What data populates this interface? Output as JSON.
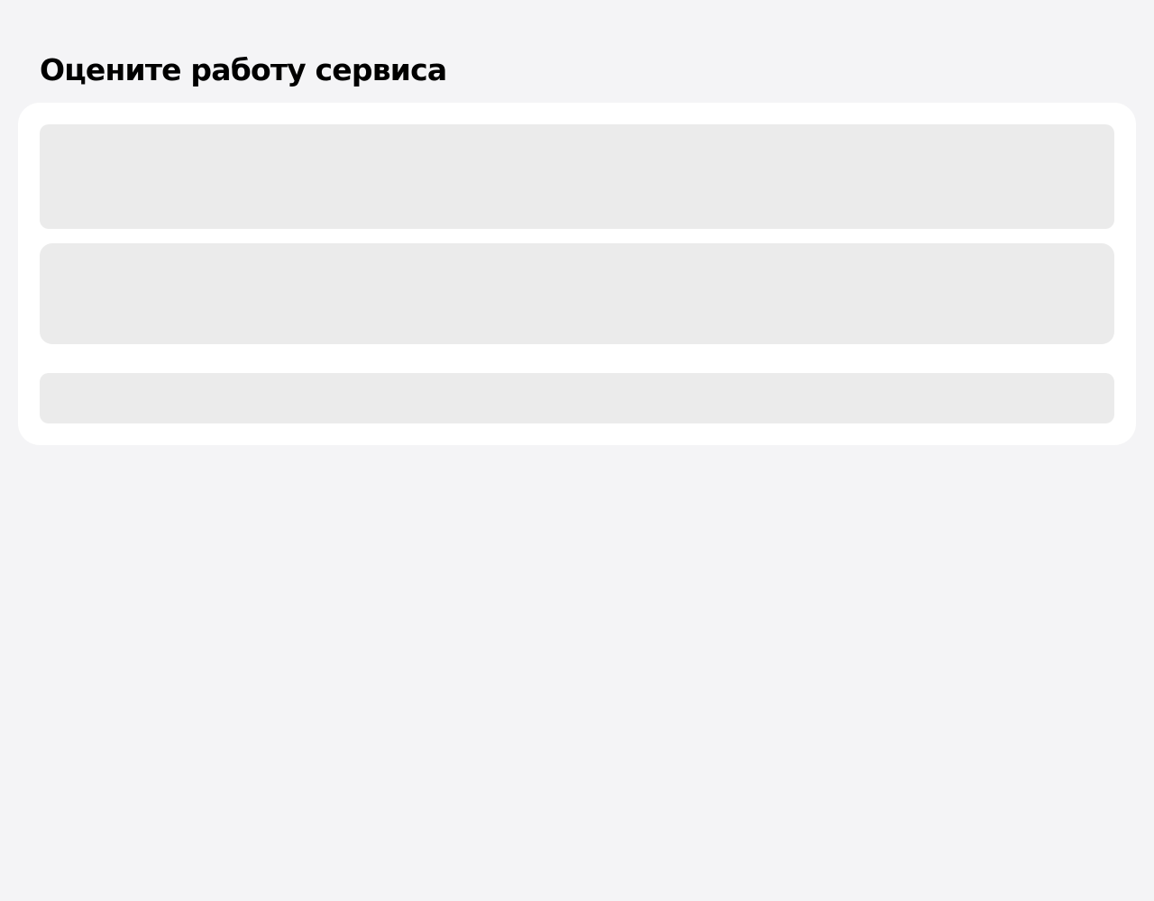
{
  "page": {
    "title": "Оцените работу сервиса",
    "background_color": "#f4f4f6"
  },
  "card": {
    "background_color": "#ffffff",
    "placeholders": [
      {
        "state": "loading",
        "color": "#ebebeb"
      },
      {
        "state": "loading",
        "color": "#ebebeb"
      },
      {
        "state": "loading",
        "color": "#ebebeb"
      }
    ]
  }
}
